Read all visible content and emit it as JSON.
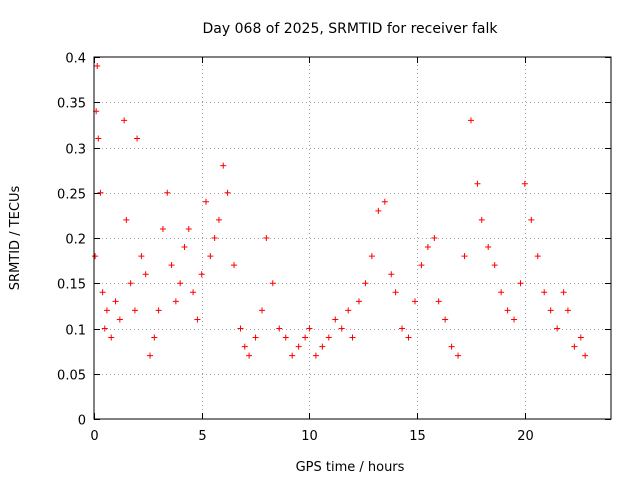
{
  "chart_data": {
    "type": "scatter",
    "title": "Day 068 of 2025, SRMTID for receiver falk",
    "xlabel": "GPS time / hours",
    "ylabel": "SRMTID / TECUs",
    "xlim": [
      0,
      24
    ],
    "ylim": [
      0,
      0.4
    ],
    "xticks": [
      0,
      5,
      10,
      15,
      20
    ],
    "xtick_labels": [
      "0",
      "5",
      "10",
      "15",
      "20"
    ],
    "yticks": [
      0,
      0.05,
      0.1,
      0.15,
      0.2,
      0.25,
      0.3,
      0.35,
      0.4
    ],
    "ytick_labels": [
      "0",
      "0.05",
      "0.1",
      "0.15",
      "0.2",
      "0.25",
      "0.3",
      "0.35",
      "0.4"
    ],
    "grid": true,
    "marker": "plus",
    "color": "#ff0000",
    "series": [
      {
        "name": "SRMTID",
        "x": [
          0.05,
          0.1,
          0.15,
          0.2,
          0.3,
          0.4,
          0.5,
          0.6,
          0.8,
          1.0,
          1.2,
          1.4,
          1.5,
          1.7,
          1.9,
          2.0,
          2.2,
          2.4,
          2.6,
          2.8,
          3.0,
          3.2,
          3.4,
          3.6,
          3.8,
          4.0,
          4.2,
          4.4,
          4.6,
          4.8,
          5.0,
          5.2,
          5.4,
          5.6,
          5.8,
          6.0,
          6.2,
          6.5,
          6.8,
          7.0,
          7.2,
          7.5,
          7.8,
          8.0,
          8.3,
          8.6,
          8.9,
          9.2,
          9.5,
          9.8,
          10.0,
          10.3,
          10.6,
          10.9,
          11.2,
          11.5,
          11.8,
          12.0,
          12.3,
          12.6,
          12.9,
          13.2,
          13.5,
          13.8,
          14.0,
          14.3,
          14.6,
          14.9,
          15.2,
          15.5,
          15.8,
          16.0,
          16.3,
          16.6,
          16.9,
          17.2,
          17.5,
          17.8,
          18.0,
          18.3,
          18.6,
          18.9,
          19.2,
          19.5,
          19.8,
          20.0,
          20.3,
          20.6,
          20.9,
          21.2,
          21.5,
          21.8,
          22.0,
          22.3,
          22.6,
          22.8
        ],
        "y": [
          0.18,
          0.34,
          0.39,
          0.31,
          0.25,
          0.14,
          0.1,
          0.12,
          0.09,
          0.13,
          0.11,
          0.33,
          0.22,
          0.15,
          0.12,
          0.31,
          0.18,
          0.16,
          0.07,
          0.09,
          0.12,
          0.21,
          0.25,
          0.17,
          0.13,
          0.15,
          0.19,
          0.21,
          0.14,
          0.11,
          0.16,
          0.24,
          0.18,
          0.2,
          0.22,
          0.28,
          0.25,
          0.17,
          0.1,
          0.08,
          0.07,
          0.09,
          0.12,
          0.2,
          0.15,
          0.1,
          0.09,
          0.07,
          0.08,
          0.09,
          0.1,
          0.07,
          0.08,
          0.09,
          0.11,
          0.1,
          0.12,
          0.09,
          0.13,
          0.15,
          0.18,
          0.23,
          0.24,
          0.16,
          0.14,
          0.1,
          0.09,
          0.13,
          0.17,
          0.19,
          0.2,
          0.13,
          0.11,
          0.08,
          0.07,
          0.18,
          0.33,
          0.26,
          0.22,
          0.19,
          0.17,
          0.14,
          0.12,
          0.11,
          0.15,
          0.26,
          0.22,
          0.18,
          0.14,
          0.12,
          0.1,
          0.14,
          0.12,
          0.08,
          0.09,
          0.07
        ]
      }
    ]
  }
}
